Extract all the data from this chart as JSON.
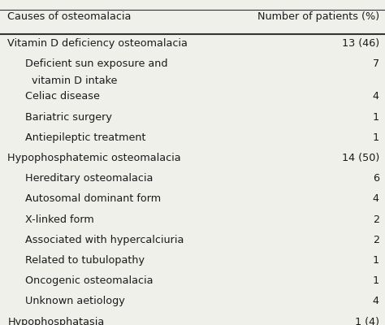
{
  "title_left": "Causes of osteomalacia",
  "title_right": "Number of patients (%)",
  "rows": [
    {
      "label": "Vitamin D deficiency osteomalacia",
      "value": "13 (46)",
      "indent": 0
    },
    {
      "label": "Deficient sun exposure and\n  vitamin D intake",
      "value": "7",
      "indent": 1
    },
    {
      "label": "Celiac disease",
      "value": "4",
      "indent": 1
    },
    {
      "label": "Bariatric surgery",
      "value": "1",
      "indent": 1
    },
    {
      "label": "Antiepileptic treatment",
      "value": "1",
      "indent": 1
    },
    {
      "label": "Hypophosphatemic osteomalacia",
      "value": "14 (50)",
      "indent": 0
    },
    {
      "label": "Hereditary osteomalacia",
      "value": "6",
      "indent": 1
    },
    {
      "label": "Autosomal dominant form",
      "value": "4",
      "indent": 1
    },
    {
      "label": "X-linked form",
      "value": "2",
      "indent": 1
    },
    {
      "label": "Associated with hypercalciuria",
      "value": "2",
      "indent": 1
    },
    {
      "label": "Related to tubulopathy",
      "value": "1",
      "indent": 1
    },
    {
      "label": "Oncogenic osteomalacia",
      "value": "1",
      "indent": 1
    },
    {
      "label": "Unknown aetiology",
      "value": "4",
      "indent": 1
    },
    {
      "label": "Hypophosphatasia",
      "value": "1 (4)",
      "indent": 0
    }
  ],
  "bg_color": "#f0f0eb",
  "text_color": "#1a1a1a",
  "line_color": "#333333",
  "font_size": 9.2,
  "header_font_size": 9.2
}
